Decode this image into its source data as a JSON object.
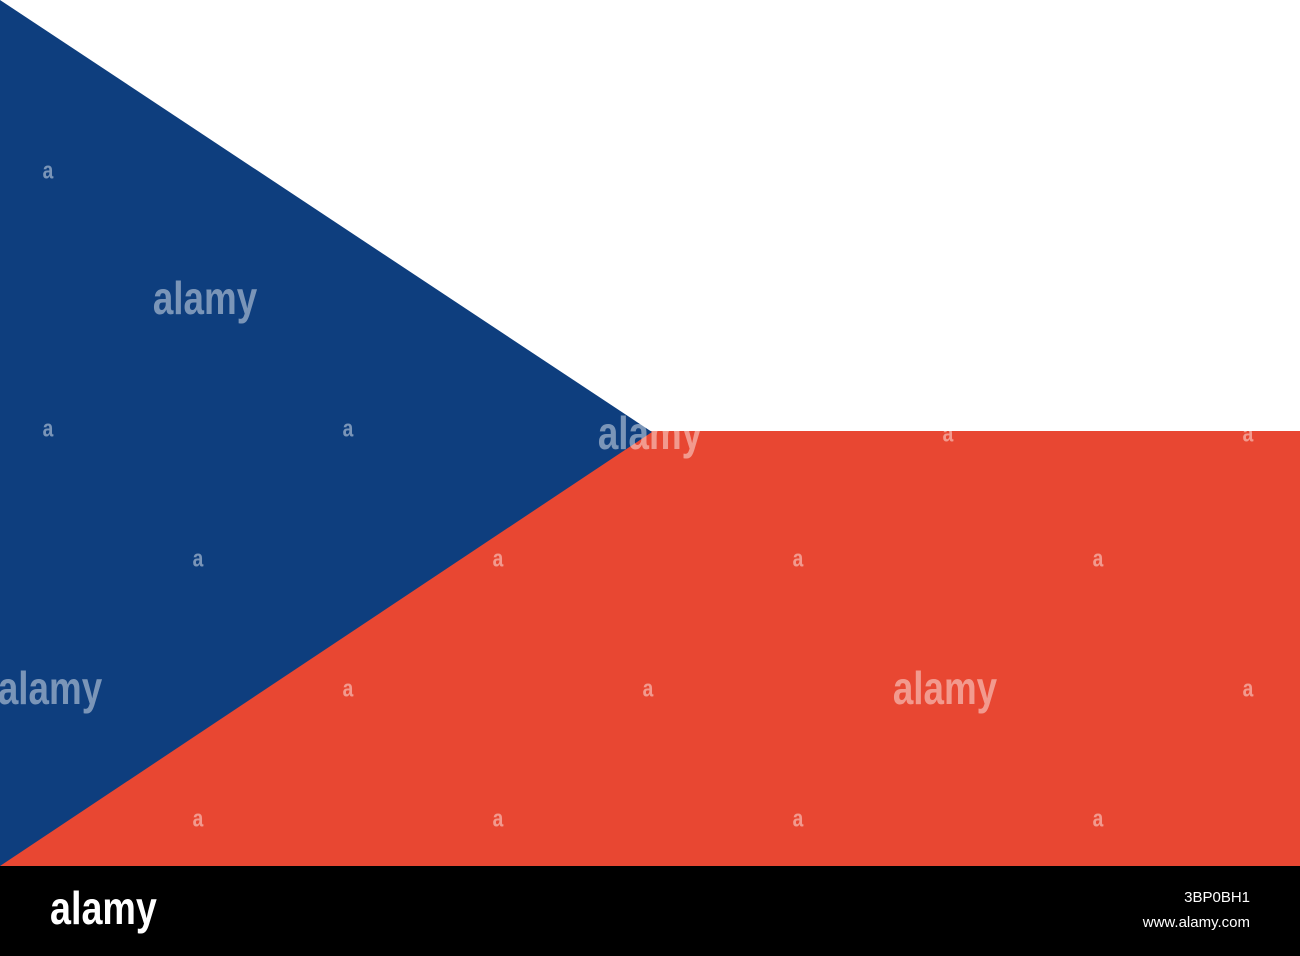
{
  "watermarks": [
    "a",
    "a",
    "a",
    "a",
    "a",
    "a",
    "a",
    "a",
    "a",
    "a",
    "a",
    "a",
    "a",
    "a",
    "a",
    "a",
    "alamy",
    "alamy",
    "alamy",
    "alamy"
  ],
  "footer": {
    "logo": "alamy",
    "image_id": "3BP0BH1",
    "url": "www.alamy.com"
  }
}
